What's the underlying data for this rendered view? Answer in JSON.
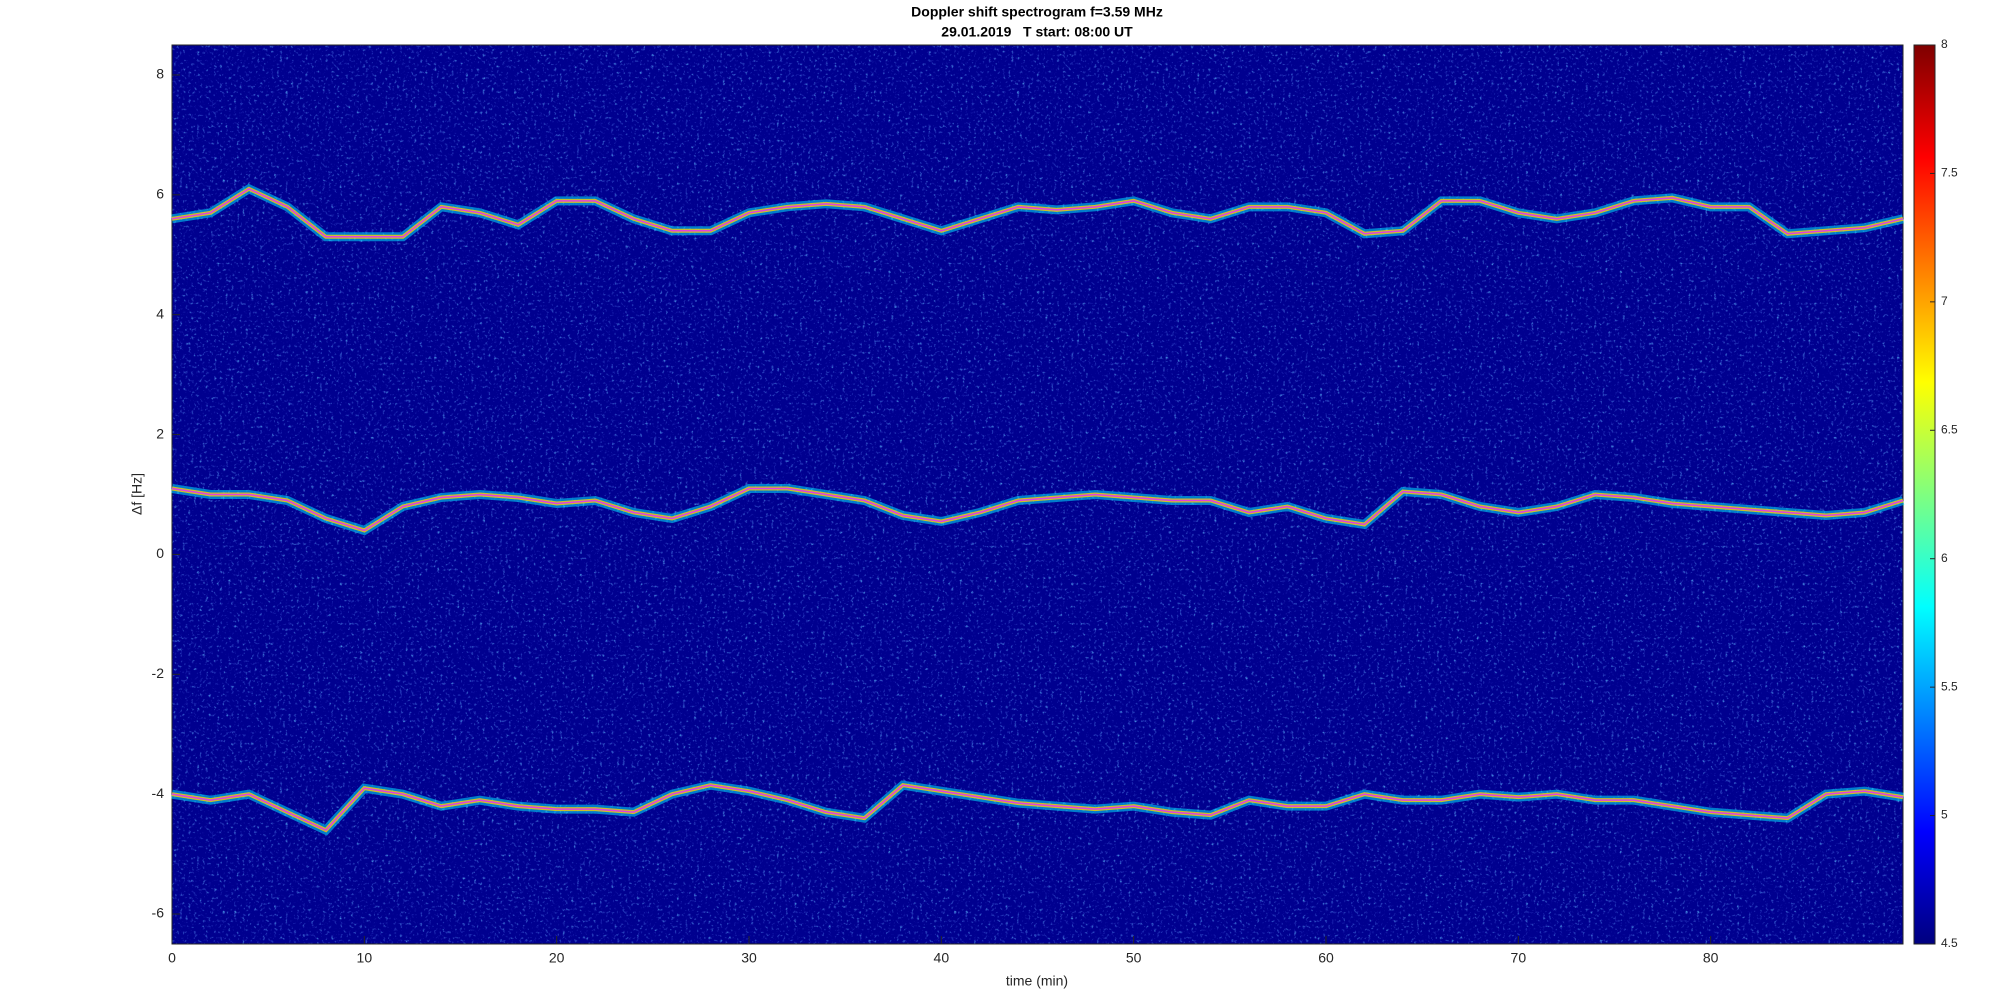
{
  "chart_data": {
    "type": "line",
    "title": "Doppler shift spectrogram f=3.59 MHz",
    "subtitle": "29.01.2019   T start: 08:00 UT",
    "x_label": "time (min)",
    "y_label": "Δf [Hz]",
    "x": [
      0,
      2,
      4,
      6,
      8,
      10,
      12,
      14,
      16,
      18,
      20,
      22,
      24,
      26,
      28,
      30,
      32,
      34,
      36,
      38,
      40,
      42,
      44,
      46,
      48,
      50,
      52,
      54,
      56,
      58,
      60,
      62,
      64,
      66,
      68,
      70,
      72,
      74,
      76,
      78,
      80,
      82,
      84,
      86,
      88,
      90
    ],
    "series": [
      {
        "color": "#e040e0",
        "values": [
          5.6,
          5.7,
          6.1,
          5.8,
          5.3,
          5.3,
          5.3,
          5.8,
          5.7,
          5.5,
          5.9,
          5.9,
          5.6,
          5.4,
          5.4,
          5.7,
          5.8,
          5.85,
          5.8,
          5.6,
          5.4,
          5.6,
          5.8,
          5.75,
          5.8,
          5.9,
          5.7,
          5.6,
          5.8,
          5.8,
          5.7,
          5.35,
          5.4,
          5.9,
          5.9,
          5.7,
          5.6,
          5.7,
          5.9,
          5.95,
          5.8,
          5.8,
          5.35,
          5.4,
          5.45,
          5.6
        ]
      },
      {
        "color": "#e040e0",
        "values": [
          1.1,
          1.0,
          1.0,
          0.9,
          0.6,
          0.4,
          0.8,
          0.95,
          1.0,
          0.95,
          0.85,
          0.9,
          0.7,
          0.6,
          0.8,
          1.1,
          1.1,
          1.0,
          0.9,
          0.65,
          0.55,
          0.7,
          0.9,
          0.95,
          1.0,
          0.95,
          0.9,
          0.9,
          0.7,
          0.8,
          0.6,
          0.5,
          1.05,
          1.0,
          0.8,
          0.7,
          0.8,
          1.0,
          0.95,
          0.85,
          0.8,
          0.75,
          0.7,
          0.65,
          0.7,
          0.9
        ]
      },
      {
        "color": "#e040e0",
        "values": [
          -4.0,
          -4.1,
          -4.0,
          -4.3,
          -4.6,
          -3.9,
          -4.0,
          -4.2,
          -4.1,
          -4.2,
          -4.25,
          -4.25,
          -4.3,
          -4.0,
          -3.85,
          -3.95,
          -4.1,
          -4.3,
          -4.4,
          -3.85,
          -3.95,
          -4.05,
          -4.15,
          -4.2,
          -4.25,
          -4.2,
          -4.3,
          -4.35,
          -4.1,
          -4.2,
          -4.2,
          -4.0,
          -4.1,
          -4.1,
          -4.0,
          -4.05,
          -4.0,
          -4.1,
          -4.1,
          -4.2,
          -4.3,
          -4.35,
          -4.4,
          -4.0,
          -3.95,
          -4.05
        ]
      }
    ],
    "xlim": [
      0,
      90
    ],
    "xticks": [
      0,
      10,
      20,
      30,
      40,
      50,
      60,
      70,
      80
    ],
    "ylim": [
      -6.5,
      8.5
    ],
    "yticks": [
      -6,
      -4,
      -2,
      0,
      2,
      4,
      6,
      8
    ],
    "clim": [
      4.5,
      8
    ],
    "cticks": [
      4.5,
      5,
      5.5,
      6,
      6.5,
      7,
      7.5,
      8
    ]
  }
}
